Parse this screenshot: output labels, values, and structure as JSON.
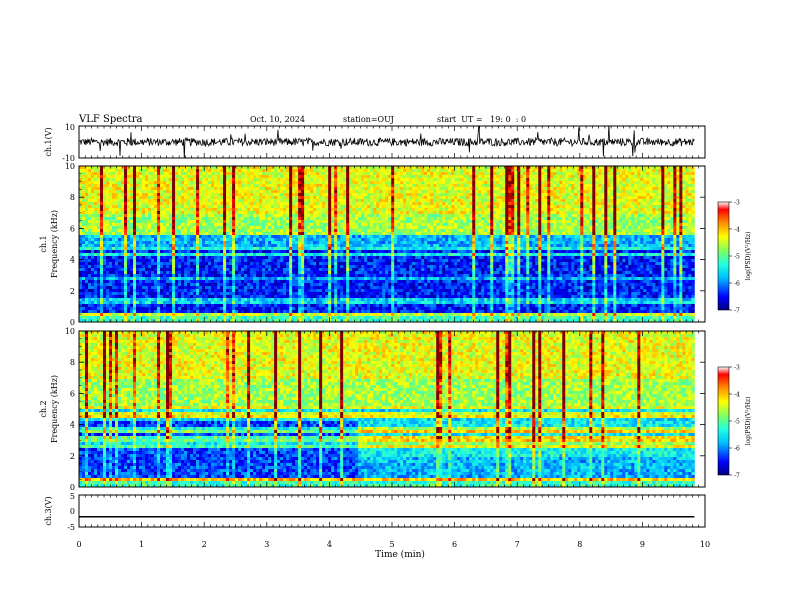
{
  "header": {
    "title": "VLF Spectra",
    "date": "Oct. 10, 2024",
    "station": "station=OUJ",
    "start": "start  UT =   19: 0  : 0"
  },
  "chart_data": [
    {
      "type": "line",
      "panel": "ch1-waveform",
      "ylabel": "ch.1(V)",
      "ylim": [
        -10,
        10
      ],
      "yticks": [
        "10",
        "-10"
      ],
      "series": [
        {
          "baseline": 0,
          "noise_amplitude_approx": 2.5
        }
      ]
    },
    {
      "type": "heatmap",
      "panel": "ch1-spectrogram",
      "ylabel_top": "ch.1",
      "ylabel": "Frequency (kHz)",
      "ylim": [
        0,
        10
      ],
      "yticks": [
        "0",
        "2",
        "4",
        "6",
        "8",
        "10"
      ],
      "xlim": [
        0,
        10
      ],
      "colorbar": {
        "range": [
          -7,
          -3
        ],
        "ticks": [
          "-3",
          "-4",
          "-5",
          "-6",
          "-7"
        ],
        "label": "log(PSD)(V²/Hz)"
      }
    },
    {
      "type": "heatmap",
      "panel": "ch2-spectrogram",
      "ylabel_top": "ch.2",
      "ylabel": "Frequency (kHz)",
      "ylim": [
        0,
        10
      ],
      "yticks": [
        "0",
        "2",
        "4",
        "6",
        "8",
        "10"
      ],
      "xlim": [
        0,
        10
      ],
      "colorbar": {
        "range": [
          -7,
          -3
        ],
        "ticks": [
          "-3",
          "-4",
          "-5",
          "-6",
          "-7"
        ],
        "label": "log(PSD)(V²/Hz)"
      }
    },
    {
      "type": "line",
      "panel": "ch3-waveform",
      "ylabel": "ch.3(V)",
      "ylim": [
        -5,
        5
      ],
      "yticks": [
        "5",
        "0",
        "-5"
      ],
      "series": [
        {
          "constant": -1.8
        }
      ]
    }
  ],
  "xaxis": {
    "label": "Time (min)",
    "range": [
      0,
      10
    ],
    "ticks": [
      "0",
      "1",
      "2",
      "3",
      "4",
      "5",
      "6",
      "7",
      "8",
      "9",
      "10"
    ],
    "data_end": 9.83
  },
  "colors": {
    "colormap": [
      "#00007f",
      "#0000ff",
      "#007fff",
      "#00ffff",
      "#7fff7f",
      "#ffff00",
      "#ff7f00",
      "#ff0000",
      "#7f0000"
    ]
  }
}
